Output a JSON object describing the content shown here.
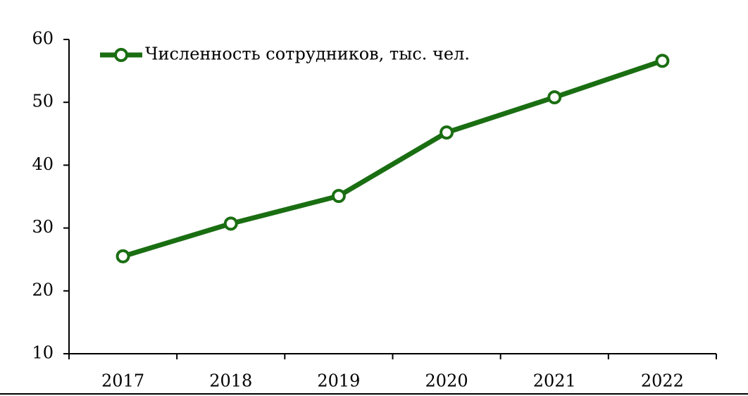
{
  "chart_data": {
    "type": "line",
    "categories": [
      "2017",
      "2018",
      "2019",
      "2020",
      "2021",
      "2022"
    ],
    "series": [
      {
        "name": "Численность сотрудников, тыс. чел.",
        "color": "#1a6e12",
        "values": [
          25.5,
          30.7,
          35.1,
          45.2,
          50.8,
          56.6
        ]
      }
    ],
    "ylim": [
      10,
      60
    ],
    "yticks": [
      10,
      20,
      30,
      40,
      50,
      60
    ],
    "legend": "top-left"
  }
}
